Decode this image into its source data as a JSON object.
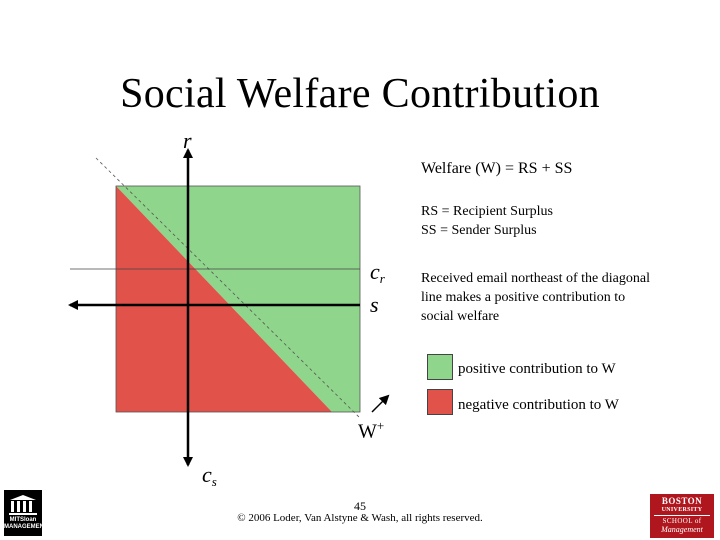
{
  "title": "Social Welfare Contribution",
  "axes": {
    "r_label": "r",
    "s_label": "s",
    "cr_base": "c",
    "cr_sub": "r",
    "cs_base": "c",
    "cs_sub": "s"
  },
  "annotations": {
    "welfare_eq": "Welfare (W) = RS + SS",
    "rs_def": "RS = Recipient Surplus",
    "ss_def": "SS = Sender Surplus",
    "note_lines": [
      "Received email northeast of the diagonal",
      "line makes a positive contribution to",
      "social welfare"
    ],
    "w_plus_base": "W",
    "w_plus_sup": "+"
  },
  "legend": [
    {
      "label": "positive contribution to W",
      "color": "#8fd58c"
    },
    {
      "label": "negative contribution to W",
      "color": "#e0524a"
    }
  ],
  "colors": {
    "positive": "#8fd58c",
    "negative": "#e0524a"
  },
  "footer": {
    "page_number": "45",
    "copyright": "© 2006 Loder, Van Alstyne & Wash, all rights reserved."
  },
  "logos": {
    "mit": {
      "line1": "MITSloan",
      "line2": "MANAGEMENT"
    },
    "bu": {
      "line1": "BOSTON",
      "line2": "UNIVERSITY",
      "line3": "SCHOOL of",
      "line4": "Management"
    }
  }
}
